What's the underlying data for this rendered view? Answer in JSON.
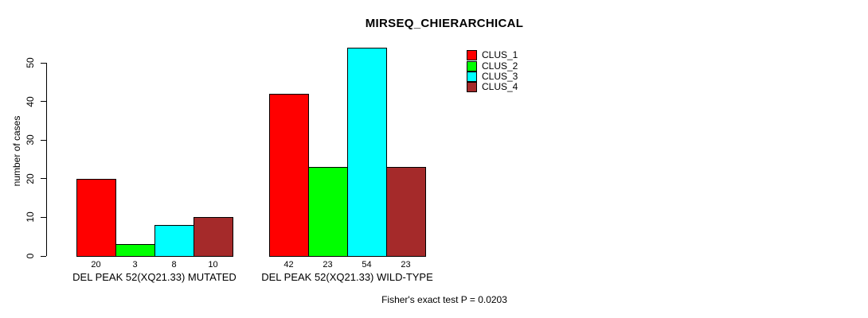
{
  "chart_data": {
    "type": "bar",
    "title": "MIRSEQ_CHIERARCHICAL",
    "ylabel": "number of cases",
    "xlabel": "",
    "ylim": [
      0,
      50
    ],
    "yticks": [
      0,
      10,
      20,
      30,
      40,
      50
    ],
    "grid": false,
    "legend_position": "top-right",
    "categories": [
      "DEL PEAK 52(XQ21.33) MUTATED",
      "DEL PEAK 52(XQ21.33) WILD-TYPE"
    ],
    "series": [
      {
        "name": "CLUS_1",
        "color": "#ff0000",
        "values": [
          20,
          42
        ]
      },
      {
        "name": "CLUS_2",
        "color": "#00ff00",
        "values": [
          3,
          23
        ]
      },
      {
        "name": "CLUS_3",
        "color": "#00ffff",
        "values": [
          8,
          54
        ]
      },
      {
        "name": "CLUS_4",
        "color": "#a52a2a",
        "values": [
          10,
          23
        ]
      }
    ],
    "bar_value_labels": [
      [
        20,
        3,
        8,
        10
      ],
      [
        42,
        23,
        54,
        23
      ]
    ],
    "bar_border_color": "#000000",
    "axis_color": "#000000",
    "background": "#ffffff",
    "footnote": "Fisher's exact test P = 0.0203"
  }
}
